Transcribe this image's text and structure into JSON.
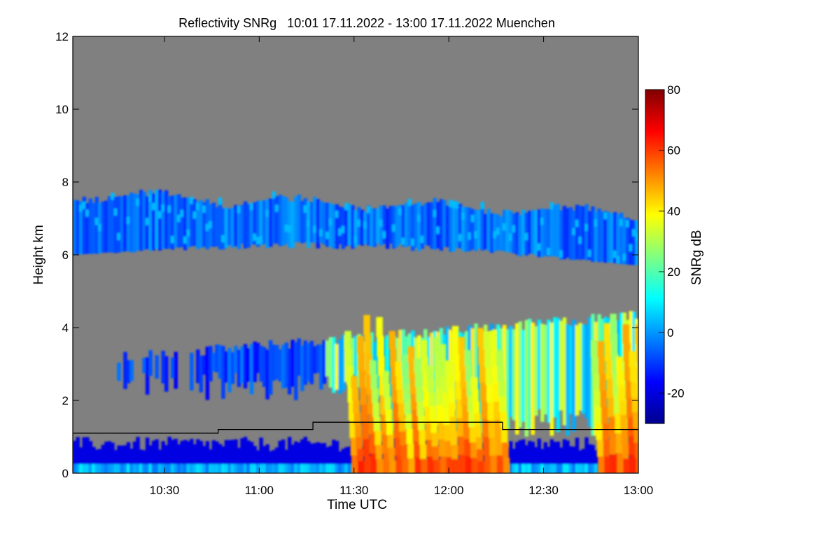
{
  "chart_data": {
    "type": "heatmap",
    "title": "Reflectivity SNRg   10:01 17.11.2022 - 13:00 17.11.2022 Muenchen",
    "xlabel": "Time UTC",
    "ylabel": "Height km",
    "xlim": [
      "10:01",
      "13:00"
    ],
    "ylim": [
      0,
      12
    ],
    "x_ticks": [
      "10:30",
      "11:00",
      "11:30",
      "12:00",
      "12:30",
      "13:00"
    ],
    "y_ticks": [
      "0",
      "2",
      "4",
      "6",
      "8",
      "10",
      "12"
    ],
    "background_color": "#808080",
    "colorbar": {
      "label": "SNRg dB",
      "range": [
        -30,
        80
      ],
      "ticks": [
        "-20",
        "0",
        "20",
        "40",
        "60",
        "80"
      ],
      "colormap": "jet",
      "colors": [
        "#00008f",
        "#0000ff",
        "#0080ff",
        "#00ffff",
        "#80ff80",
        "#ffff00",
        "#ff8000",
        "#ff0000",
        "#800000"
      ]
    },
    "cloud_layers": [
      {
        "name": "upper cloud",
        "time_start": "10:01",
        "time_end": "13:00",
        "height_bottom_km": 5.8,
        "height_top_km": 7.9,
        "snr_db_range": [
          -20,
          5
        ]
      },
      {
        "name": "mid cloud",
        "time_start": "10:12",
        "time_end": "13:00",
        "height_bottom_km": 1.5,
        "height_top_km": 4.5,
        "snr_db_range": [
          -20,
          50
        ]
      },
      {
        "name": "boundary layer",
        "time_start": "10:01",
        "time_end": "13:00",
        "height_bottom_km": 0,
        "height_top_km": 1.0,
        "snr_db_range": [
          -25,
          10
        ]
      },
      {
        "name": "precipitation columns",
        "time_start": "11:27",
        "time_end": "13:00",
        "height_bottom_km": 0,
        "height_top_km": 4.5,
        "snr_db_range": [
          0,
          70
        ]
      }
    ],
    "step_line": {
      "color": "#000000",
      "time": [
        "10:01",
        "10:47",
        "11:17",
        "12:17",
        "13:00"
      ],
      "height_km": [
        1.1,
        1.2,
        1.4,
        1.2,
        1.2
      ]
    }
  }
}
